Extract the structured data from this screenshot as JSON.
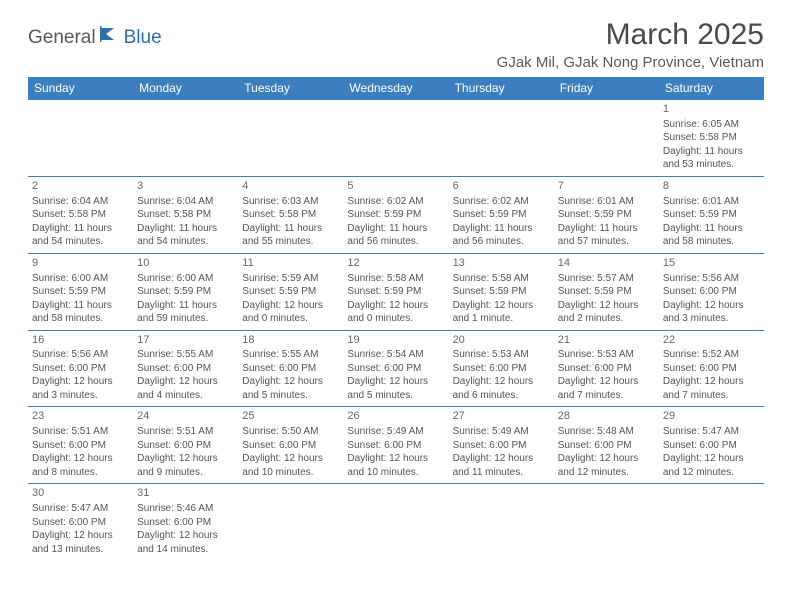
{
  "logo": {
    "part1": "General",
    "part2": "Blue"
  },
  "title": "March 2025",
  "location": "GJak Mil, GJak Nong Province, Vietnam",
  "colors": {
    "header_bg": "#3b7fbf",
    "header_text": "#ffffff",
    "border": "#3b7fbf",
    "text": "#555555",
    "title_text": "#4a4a4a",
    "logo_gray": "#5a5a5a",
    "logo_blue": "#2f6fa8"
  },
  "fonts": {
    "title_size": 30,
    "location_size": 15,
    "dayheader_size": 12,
    "daynum_size": 11,
    "cell_size": 10
  },
  "day_headers": [
    "Sunday",
    "Monday",
    "Tuesday",
    "Wednesday",
    "Thursday",
    "Friday",
    "Saturday"
  ],
  "weeks": [
    [
      null,
      null,
      null,
      null,
      null,
      null,
      {
        "n": "1",
        "sr": "Sunrise: 6:05 AM",
        "ss": "Sunset: 5:58 PM",
        "dl": "Daylight: 11 hours and 53 minutes."
      }
    ],
    [
      {
        "n": "2",
        "sr": "Sunrise: 6:04 AM",
        "ss": "Sunset: 5:58 PM",
        "dl": "Daylight: 11 hours and 54 minutes."
      },
      {
        "n": "3",
        "sr": "Sunrise: 6:04 AM",
        "ss": "Sunset: 5:58 PM",
        "dl": "Daylight: 11 hours and 54 minutes."
      },
      {
        "n": "4",
        "sr": "Sunrise: 6:03 AM",
        "ss": "Sunset: 5:58 PM",
        "dl": "Daylight: 11 hours and 55 minutes."
      },
      {
        "n": "5",
        "sr": "Sunrise: 6:02 AM",
        "ss": "Sunset: 5:59 PM",
        "dl": "Daylight: 11 hours and 56 minutes."
      },
      {
        "n": "6",
        "sr": "Sunrise: 6:02 AM",
        "ss": "Sunset: 5:59 PM",
        "dl": "Daylight: 11 hours and 56 minutes."
      },
      {
        "n": "7",
        "sr": "Sunrise: 6:01 AM",
        "ss": "Sunset: 5:59 PM",
        "dl": "Daylight: 11 hours and 57 minutes."
      },
      {
        "n": "8",
        "sr": "Sunrise: 6:01 AM",
        "ss": "Sunset: 5:59 PM",
        "dl": "Daylight: 11 hours and 58 minutes."
      }
    ],
    [
      {
        "n": "9",
        "sr": "Sunrise: 6:00 AM",
        "ss": "Sunset: 5:59 PM",
        "dl": "Daylight: 11 hours and 58 minutes."
      },
      {
        "n": "10",
        "sr": "Sunrise: 6:00 AM",
        "ss": "Sunset: 5:59 PM",
        "dl": "Daylight: 11 hours and 59 minutes."
      },
      {
        "n": "11",
        "sr": "Sunrise: 5:59 AM",
        "ss": "Sunset: 5:59 PM",
        "dl": "Daylight: 12 hours and 0 minutes."
      },
      {
        "n": "12",
        "sr": "Sunrise: 5:58 AM",
        "ss": "Sunset: 5:59 PM",
        "dl": "Daylight: 12 hours and 0 minutes."
      },
      {
        "n": "13",
        "sr": "Sunrise: 5:58 AM",
        "ss": "Sunset: 5:59 PM",
        "dl": "Daylight: 12 hours and 1 minute."
      },
      {
        "n": "14",
        "sr": "Sunrise: 5:57 AM",
        "ss": "Sunset: 5:59 PM",
        "dl": "Daylight: 12 hours and 2 minutes."
      },
      {
        "n": "15",
        "sr": "Sunrise: 5:56 AM",
        "ss": "Sunset: 6:00 PM",
        "dl": "Daylight: 12 hours and 3 minutes."
      }
    ],
    [
      {
        "n": "16",
        "sr": "Sunrise: 5:56 AM",
        "ss": "Sunset: 6:00 PM",
        "dl": "Daylight: 12 hours and 3 minutes."
      },
      {
        "n": "17",
        "sr": "Sunrise: 5:55 AM",
        "ss": "Sunset: 6:00 PM",
        "dl": "Daylight: 12 hours and 4 minutes."
      },
      {
        "n": "18",
        "sr": "Sunrise: 5:55 AM",
        "ss": "Sunset: 6:00 PM",
        "dl": "Daylight: 12 hours and 5 minutes."
      },
      {
        "n": "19",
        "sr": "Sunrise: 5:54 AM",
        "ss": "Sunset: 6:00 PM",
        "dl": "Daylight: 12 hours and 5 minutes."
      },
      {
        "n": "20",
        "sr": "Sunrise: 5:53 AM",
        "ss": "Sunset: 6:00 PM",
        "dl": "Daylight: 12 hours and 6 minutes."
      },
      {
        "n": "21",
        "sr": "Sunrise: 5:53 AM",
        "ss": "Sunset: 6:00 PM",
        "dl": "Daylight: 12 hours and 7 minutes."
      },
      {
        "n": "22",
        "sr": "Sunrise: 5:52 AM",
        "ss": "Sunset: 6:00 PM",
        "dl": "Daylight: 12 hours and 7 minutes."
      }
    ],
    [
      {
        "n": "23",
        "sr": "Sunrise: 5:51 AM",
        "ss": "Sunset: 6:00 PM",
        "dl": "Daylight: 12 hours and 8 minutes."
      },
      {
        "n": "24",
        "sr": "Sunrise: 5:51 AM",
        "ss": "Sunset: 6:00 PM",
        "dl": "Daylight: 12 hours and 9 minutes."
      },
      {
        "n": "25",
        "sr": "Sunrise: 5:50 AM",
        "ss": "Sunset: 6:00 PM",
        "dl": "Daylight: 12 hours and 10 minutes."
      },
      {
        "n": "26",
        "sr": "Sunrise: 5:49 AM",
        "ss": "Sunset: 6:00 PM",
        "dl": "Daylight: 12 hours and 10 minutes."
      },
      {
        "n": "27",
        "sr": "Sunrise: 5:49 AM",
        "ss": "Sunset: 6:00 PM",
        "dl": "Daylight: 12 hours and 11 minutes."
      },
      {
        "n": "28",
        "sr": "Sunrise: 5:48 AM",
        "ss": "Sunset: 6:00 PM",
        "dl": "Daylight: 12 hours and 12 minutes."
      },
      {
        "n": "29",
        "sr": "Sunrise: 5:47 AM",
        "ss": "Sunset: 6:00 PM",
        "dl": "Daylight: 12 hours and 12 minutes."
      }
    ],
    [
      {
        "n": "30",
        "sr": "Sunrise: 5:47 AM",
        "ss": "Sunset: 6:00 PM",
        "dl": "Daylight: 12 hours and 13 minutes."
      },
      {
        "n": "31",
        "sr": "Sunrise: 5:46 AM",
        "ss": "Sunset: 6:00 PM",
        "dl": "Daylight: 12 hours and 14 minutes."
      },
      null,
      null,
      null,
      null,
      null
    ]
  ]
}
